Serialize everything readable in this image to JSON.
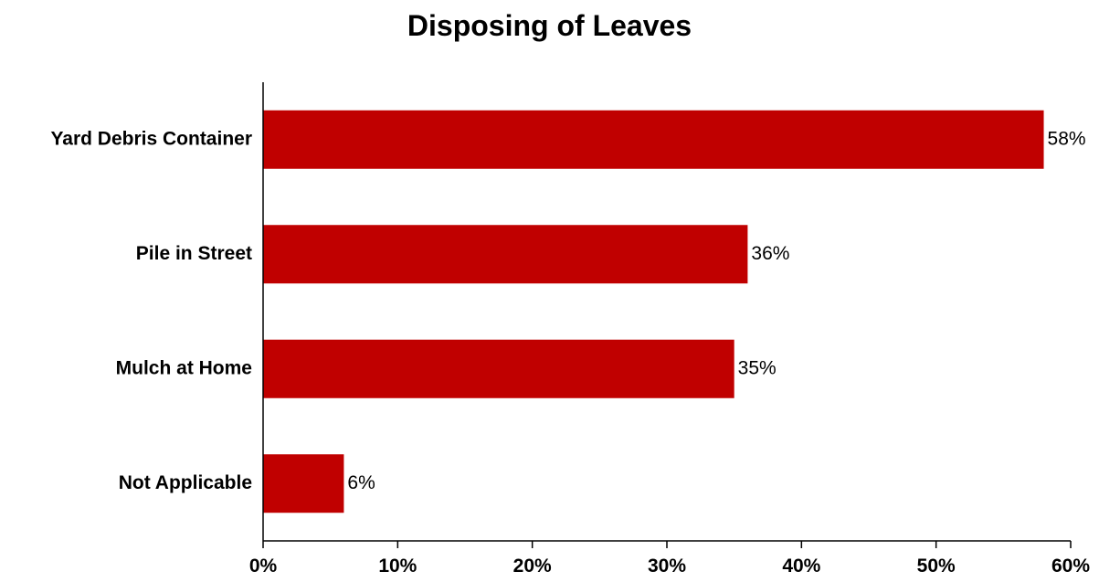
{
  "chart_data": {
    "type": "bar",
    "orientation": "horizontal",
    "title": "Disposing of Leaves",
    "categories": [
      "Yard Debris Container",
      "Pile in Street",
      "Mulch at Home",
      "Not Applicable"
    ],
    "values": [
      58,
      36,
      35,
      6
    ],
    "data_labels": [
      "58%",
      "36%",
      "35%",
      "6%"
    ],
    "xlim": [
      0,
      60
    ],
    "x_ticks": [
      0,
      10,
      20,
      30,
      40,
      50,
      60
    ],
    "x_tick_labels": [
      "0%",
      "10%",
      "20%",
      "30%",
      "40%",
      "50%",
      "60%"
    ],
    "bar_color": "#c00000",
    "grid": false,
    "legend": "none"
  }
}
